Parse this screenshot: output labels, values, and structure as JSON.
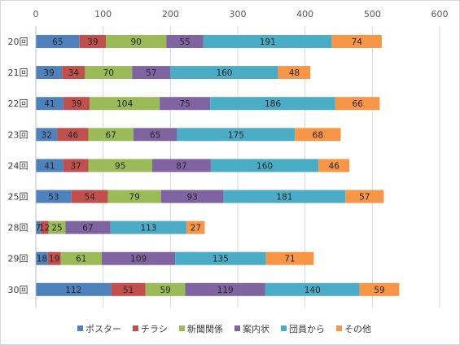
{
  "chart_data": {
    "type": "bar",
    "orientation": "horizontal",
    "stacked": true,
    "categories": [
      "20回",
      "21回",
      "22回",
      "23回",
      "24回",
      "25回",
      "28回",
      "29回",
      "30回"
    ],
    "series": [
      {
        "name": "ポスター",
        "color": "#4f81bd",
        "values": [
          65,
          39,
          41,
          32,
          41,
          53,
          7,
          18,
          112
        ],
        "labels": [
          "65",
          "39",
          "41",
          "32",
          "41",
          "53",
          "7",
          "18",
          "112"
        ]
      },
      {
        "name": "チラシ",
        "color": "#c0504d",
        "values": [
          39,
          34,
          39,
          46,
          37,
          54,
          12,
          19,
          51
        ],
        "labels": [
          "39",
          "34",
          "39",
          "46",
          "37",
          "54",
          "12",
          "19",
          "51"
        ]
      },
      {
        "name": "新聞関係",
        "color": "#9bbb59",
        "values": [
          90,
          70,
          104,
          67,
          95,
          79,
          25,
          61,
          59
        ],
        "labels": [
          "90",
          "70",
          "104",
          "67",
          "95",
          "79",
          "25",
          "61",
          "59"
        ]
      },
      {
        "name": "案内状",
        "color": "#8064a2",
        "values": [
          55,
          57,
          75,
          65,
          87,
          93,
          67,
          109,
          119
        ],
        "labels": [
          "55",
          "57",
          "75",
          "65",
          "87",
          "93",
          "67",
          "109",
          "119"
        ]
      },
      {
        "name": "団員から",
        "color": "#4bacc6",
        "values": [
          191,
          160,
          186,
          175,
          160,
          181,
          113,
          135,
          140
        ],
        "labels": [
          "191",
          "160",
          "186",
          "175",
          "160",
          "181",
          "113",
          "135",
          "140"
        ]
      },
      {
        "name": "その他",
        "color": "#f79646",
        "values": [
          74,
          48,
          66,
          68,
          46,
          57,
          27,
          71,
          59
        ],
        "labels": [
          "74",
          "48",
          "66",
          "68",
          "46",
          "57",
          "27",
          "71",
          "59"
        ]
      }
    ],
    "xlim": [
      0,
      600
    ],
    "xticks": [
      "0",
      "100",
      "200",
      "300",
      "400",
      "500",
      "600"
    ],
    "xaxis_position": "top",
    "grid": true,
    "legend_position": "bottom",
    "title": "",
    "xlabel": "",
    "ylabel": ""
  }
}
